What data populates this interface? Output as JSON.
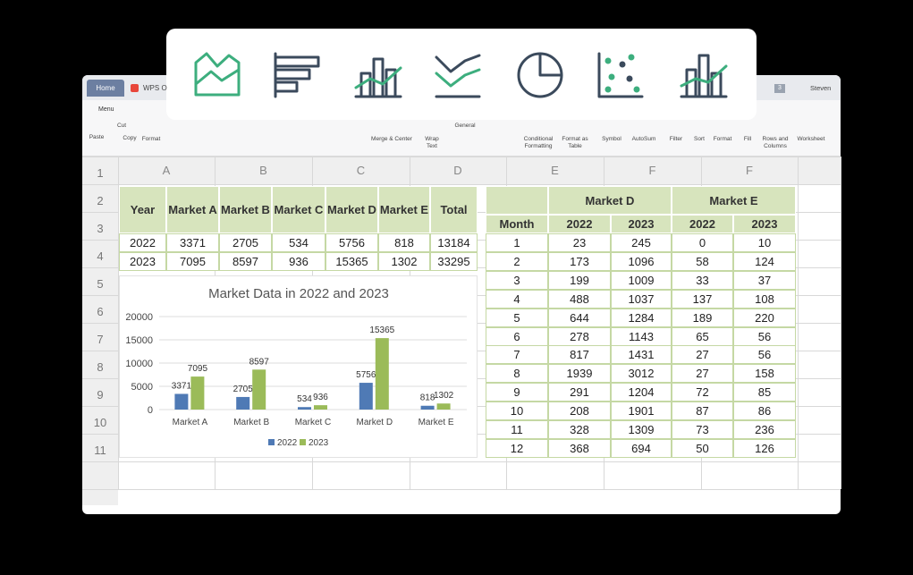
{
  "window": {
    "tabs": [
      "Home",
      "WPS O"
    ],
    "badge": "3",
    "user": "Steven"
  },
  "ribbon": {
    "menu": "Menu",
    "buttons": [
      "Paste",
      "Cut",
      "Copy",
      "Format",
      "Merge & Center",
      "Wrap Text",
      "General",
      "Conditional Formatting",
      "Format as Table",
      "Symbol",
      "AutoSum",
      "Filter",
      "Sort",
      "Format",
      "Fill",
      "Rows and Columns",
      "Worksheet"
    ]
  },
  "sheet": {
    "columns": [
      "A",
      "B",
      "C",
      "D",
      "E",
      "F",
      "F"
    ],
    "rows": [
      "1",
      "2",
      "3",
      "4",
      "5",
      "6",
      "7",
      "8",
      "9",
      "10",
      "11"
    ]
  },
  "table_left": {
    "header": [
      "Year",
      "Market A",
      "Market B",
      "Market C",
      "Market D",
      "Market E",
      "Total"
    ],
    "rows": [
      [
        2022,
        3371,
        2705,
        534,
        5756,
        818,
        13184
      ],
      [
        2023,
        7095,
        8597,
        936,
        15365,
        1302,
        33295
      ]
    ]
  },
  "chart_data": {
    "type": "bar",
    "title": "Market Data in 2022 and 2023",
    "categories": [
      "Market A",
      "Market B",
      "Market C",
      "Market D",
      "Market E"
    ],
    "series": [
      {
        "name": "2022",
        "color": "#4f7ab5",
        "values": [
          3371,
          2705,
          534,
          5756,
          818
        ]
      },
      {
        "name": "2023",
        "color": "#9bbb59",
        "values": [
          7095,
          8597,
          936,
          15365,
          1302
        ]
      }
    ],
    "ylim": [
      0,
      20000
    ],
    "yticks": [
      0,
      5000,
      10000,
      15000,
      20000
    ],
    "grid": true,
    "legend": "bottom"
  },
  "table_right": {
    "groups": [
      "Market D",
      "Market E"
    ],
    "header": [
      "Month",
      "2022",
      "2023",
      "2022",
      "2023"
    ],
    "rows": [
      [
        1,
        23,
        245,
        0,
        10
      ],
      [
        2,
        173,
        1096,
        58,
        124
      ],
      [
        3,
        199,
        1009,
        33,
        37
      ],
      [
        4,
        488,
        1037,
        137,
        108
      ],
      [
        5,
        644,
        1284,
        189,
        220
      ],
      [
        6,
        278,
        1143,
        65,
        56
      ],
      [
        7,
        817,
        1431,
        27,
        56
      ],
      [
        8,
        1939,
        3012,
        27,
        158
      ],
      [
        9,
        291,
        1204,
        72,
        85
      ],
      [
        10,
        208,
        1901,
        87,
        86
      ],
      [
        11,
        328,
        1309,
        73,
        236
      ],
      [
        12,
        368,
        694,
        50,
        126
      ]
    ]
  }
}
